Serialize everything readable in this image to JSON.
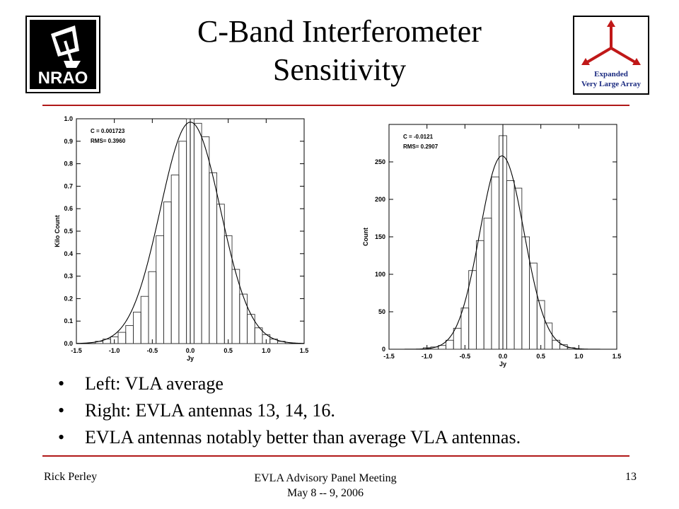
{
  "slide": {
    "title_line1": "C-Band Interferometer",
    "title_line2": "Sensitivity",
    "logo_left_text": "NRAO",
    "logo_right": {
      "line1": "Expanded",
      "line2": "Very Large Array",
      "accent_color": "#c01818"
    },
    "accent_color": "#b01818"
  },
  "bullets": [
    "Left:  VLA average",
    "Right:  EVLA antennas 13, 14, 16.",
    "EVLA antennas notably better than average VLA antennas."
  ],
  "footer": {
    "left": "Rick Perley",
    "center_line1": "EVLA Advisory Panel Meeting",
    "center_line2": "May 8 -- 9, 2006",
    "page": "13"
  },
  "chart_data": [
    {
      "type": "bar",
      "title": "",
      "xlabel": "Jy",
      "ylabel": "Kilo Count",
      "xlim": [
        -1.5,
        1.5
      ],
      "ylim": [
        0,
        1.0
      ],
      "x_ticks": [
        "-1.5",
        "-1.0",
        "-0.5",
        "0.0",
        "0.5",
        "1.0",
        "1.5"
      ],
      "y_ticks": [
        "0.0",
        "0.1",
        "0.2",
        "0.3",
        "0.4",
        "0.5",
        "0.6",
        "0.7",
        "0.8",
        "0.9",
        "1.0"
      ],
      "annotations": [
        "C = 0.001723",
        "RMS= 0.3960"
      ],
      "bin_width": 0.1,
      "bin_centers": [
        -1.2,
        -1.1,
        -1.0,
        -0.9,
        -0.8,
        -0.7,
        -0.6,
        -0.5,
        -0.4,
        -0.3,
        -0.2,
        -0.1,
        0.0,
        0.1,
        0.2,
        0.3,
        0.4,
        0.5,
        0.6,
        0.7,
        0.8,
        0.9,
        1.0,
        1.1,
        1.2
      ],
      "values": [
        0.01,
        0.02,
        0.03,
        0.05,
        0.08,
        0.14,
        0.21,
        0.32,
        0.48,
        0.63,
        0.75,
        0.9,
        1.0,
        0.98,
        0.92,
        0.76,
        0.62,
        0.48,
        0.33,
        0.22,
        0.13,
        0.07,
        0.04,
        0.02,
        0.01
      ],
      "fit": {
        "type": "gaussian",
        "amplitude": 0.985,
        "center": 0.001723,
        "sigma": 0.396
      }
    },
    {
      "type": "bar",
      "title": "",
      "xlabel": "Jy",
      "ylabel": "Count",
      "xlim": [
        -1.5,
        1.5
      ],
      "ylim": [
        0,
        300
      ],
      "x_ticks": [
        "-1.5",
        "-1.0",
        "-0.5",
        "0.0",
        "0.5",
        "1.0",
        "1.5"
      ],
      "y_ticks": [
        "0",
        "50",
        "100",
        "150",
        "200",
        "250"
      ],
      "annotations": [
        "C = -0.0121",
        "RMS= 0.2907"
      ],
      "bin_width": 0.1,
      "bin_centers": [
        -1.0,
        -0.9,
        -0.8,
        -0.7,
        -0.6,
        -0.5,
        -0.4,
        -0.3,
        -0.2,
        -0.1,
        0.0,
        0.1,
        0.2,
        0.3,
        0.4,
        0.5,
        0.6,
        0.7,
        0.8,
        0.9
      ],
      "values": [
        2,
        3,
        5,
        12,
        28,
        55,
        105,
        145,
        175,
        230,
        285,
        225,
        215,
        150,
        115,
        65,
        35,
        12,
        6,
        2
      ],
      "fit": {
        "type": "gaussian",
        "amplitude": 258,
        "center": -0.0121,
        "sigma": 0.2907
      }
    }
  ]
}
